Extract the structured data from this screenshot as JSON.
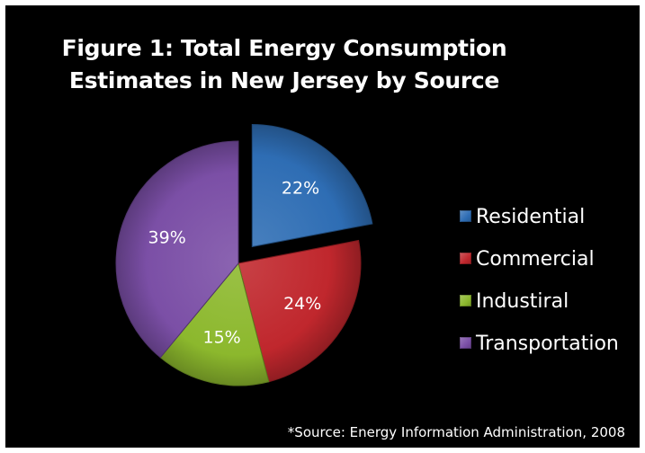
{
  "chart_data": {
    "type": "pie",
    "title": "Figure 1: Total Energy Consumption Estimates in New Jersey by Source",
    "title_lines": [
      "Figure 1: Total Energy Consumption",
      "Estimates in New Jersey by Source"
    ],
    "categories": [
      "Residential",
      "Commercial",
      "Industiral",
      "Transportation"
    ],
    "values": [
      22,
      24,
      15,
      39
    ],
    "labels": [
      "22%",
      "24%",
      "15%",
      "39%"
    ],
    "unit": "%",
    "exploded": [
      "Residential"
    ],
    "colors": [
      "#2e6db4",
      "#c0272d",
      "#8cb82d",
      "#7b4fa6"
    ],
    "legend_position": "right",
    "source": "*Source: Energy Information Administration, 2008"
  },
  "style": {
    "background": "#000000",
    "text_color": "#ffffff"
  }
}
